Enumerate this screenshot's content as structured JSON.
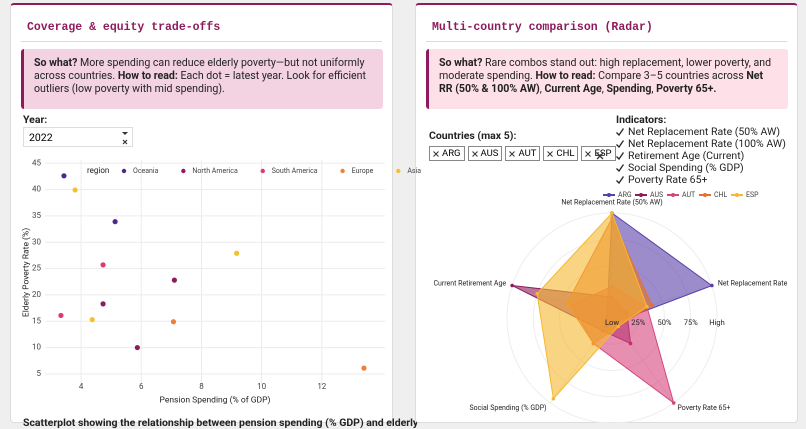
{
  "panels": [
    {
      "title": "Coverage & equity trade-offs",
      "note": [
        {
          "text": "So what?",
          "bold": true
        },
        {
          "text": " More spending can reduce elderly poverty—but not uniformly across countries. ",
          "bold": false
        },
        {
          "text": "How to read:",
          "bold": true
        },
        {
          "text": " Each dot = latest year. Look for efficient outliers (low poverty with mid spending).",
          "bold": false
        }
      ],
      "year_label": "Year:",
      "year": "2022",
      "chart": {
        "type": "scatter",
        "legend_title": "region",
        "xlabel": "Pension Spending (% of GDP)",
        "ylabel": "Elderly Poverty Rate (%)",
        "xlim": [
          2.8,
          14.1
        ],
        "ylim": [
          2.9,
          45.6
        ],
        "xticks": [
          4,
          6,
          8,
          10,
          12
        ],
        "yticks": [
          5,
          10,
          15,
          20,
          25,
          30,
          35,
          40,
          45
        ],
        "grid": true,
        "series": [
          {
            "name": "Oceania",
            "color": "#4b2991",
            "x": [
              3.43,
              5.13
            ],
            "values": [
              42.6,
              33.9
            ]
          },
          {
            "name": "North America",
            "color": "#8e1c5c",
            "x": [
              4.73,
              5.87,
              7.1
            ],
            "values": [
              18.3,
              10.0,
              22.8
            ]
          },
          {
            "name": "South America",
            "color": "#dc3977",
            "x": [
              4.73,
              3.33
            ],
            "values": [
              25.7,
              16.1
            ]
          },
          {
            "name": "Europe",
            "color": "#f07e3c",
            "x": [
              7.07,
              13.4
            ],
            "values": [
              14.9,
              6.1
            ]
          },
          {
            "name": "Asia",
            "color": "#f5c030",
            "x": [
              3.8,
              4.37,
              9.17
            ],
            "values": [
              39.9,
              15.3,
              27.9
            ]
          }
        ]
      },
      "caption": "Scatterplot showing the relationship between pension spending (% GDP) and elderly"
    },
    {
      "title": "Multi-country comparison (Radar)",
      "note": [
        {
          "text": "So what?",
          "bold": true
        },
        {
          "text": " Rare combos stand out: high replacement, lower poverty, and moderate spending. ",
          "bold": false
        },
        {
          "text": "How to read:",
          "bold": true
        },
        {
          "text": " Compare 3–5 countries across ",
          "bold": false
        },
        {
          "text": "Net RR (50% & 100% AW)",
          "bold": true
        },
        {
          "text": ", ",
          "bold": false
        },
        {
          "text": "Current Age",
          "bold": true
        },
        {
          "text": ", ",
          "bold": false
        },
        {
          "text": "Spending",
          "bold": true
        },
        {
          "text": ", ",
          "bold": false
        },
        {
          "text": "Poverty 65+.",
          "bold": true
        }
      ],
      "countries_label": "Countries (max 5):",
      "countries": [
        "ARG",
        "AUS",
        "AUT",
        "CHL",
        "ESP"
      ],
      "indicators_label": "Indicators:",
      "indicators": [
        "Net Replacement Rate (50% AW)",
        "Net Replacement Rate (100% AW)",
        "Retirement Age (Current)",
        "Social Spending (% GDP)",
        "Poverty Rate 65+"
      ],
      "chart": {
        "type": "radar",
        "axes": [
          "Net Replacement Rate (50% AW)",
          "Net Replacement Rate",
          "Poverty Rate 65+",
          "Social Spending (% GDP)",
          "Current Retirement Age"
        ],
        "rlim": [
          0,
          100
        ],
        "rticks": [
          {
            "value": 0,
            "label": "Low"
          },
          {
            "value": 25,
            "label": "25%"
          },
          {
            "value": 50,
            "label": "50%"
          },
          {
            "value": 75,
            "label": "75%"
          },
          {
            "value": 100,
            "label": "High"
          }
        ],
        "series": [
          {
            "name": "ARG",
            "color": "#5a3fa8",
            "values": [
              100,
              100,
              5,
              10,
              5
            ]
          },
          {
            "name": "AUS",
            "color": "#8e1c5c",
            "values": [
              20,
              15,
              30,
              15,
              100
            ]
          },
          {
            "name": "AUT",
            "color": "#d6457d",
            "values": [
              30,
              35,
              100,
              30,
              40
            ]
          },
          {
            "name": "CHL",
            "color": "#e8702a",
            "values": [
              95,
              40,
              10,
              30,
              45
            ]
          },
          {
            "name": "ESP",
            "color": "#f5b82e",
            "values": [
              100,
              35,
              10,
              95,
              75
            ]
          }
        ]
      }
    }
  ]
}
